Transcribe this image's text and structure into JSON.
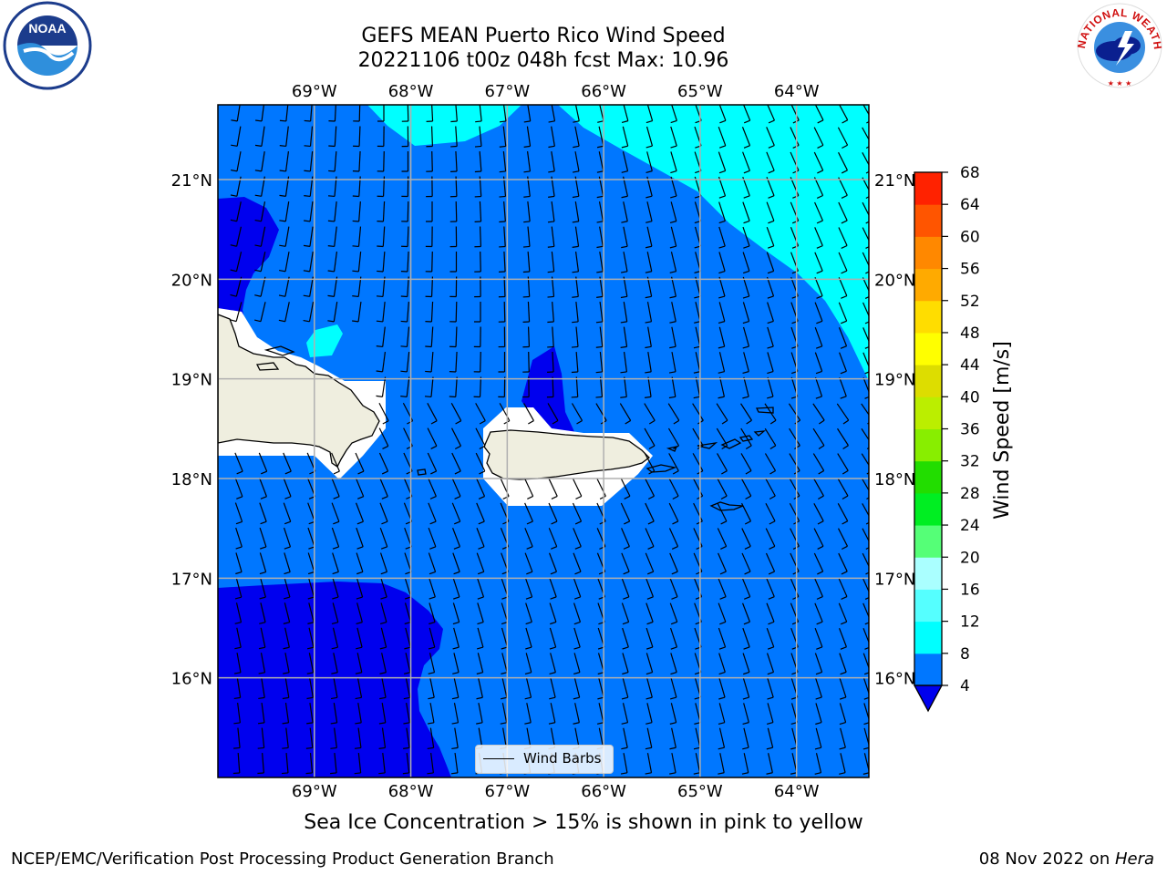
{
  "title": {
    "line1": "GEFS MEAN Puerto Rico Wind Speed",
    "line2": "20221106 t00z 048h fcst   Max: 10.96"
  },
  "map": {
    "lon_ticks": [
      "69°W",
      "68°W",
      "67°W",
      "66°W",
      "65°W",
      "64°W"
    ],
    "lat_ticks": [
      "21°N",
      "20°N",
      "19°N",
      "18°N",
      "17°N",
      "16°N"
    ],
    "lon_range": [
      -70.0,
      -63.25
    ],
    "lat_range": [
      15.0,
      21.75
    ],
    "gridlines": true,
    "legend": {
      "label": "Wind Barbs",
      "placement": "bottom-center"
    },
    "fill_colors": {
      "lt4": "#0000ee",
      "4to8": "#0077ff",
      "8to12": "#00ffff",
      "land": "#efeedf",
      "masked": "#ffffff"
    }
  },
  "colorbar": {
    "label": "Wind Speed [m/s]",
    "ticks": [
      "4",
      "8",
      "12",
      "16",
      "20",
      "24",
      "28",
      "32",
      "36",
      "40",
      "44",
      "48",
      "52",
      "56",
      "60",
      "64",
      "68"
    ],
    "colors": [
      "#0077ff",
      "#00ffff",
      "#55ffff",
      "#aaffff",
      "#55ff77",
      "#00ee22",
      "#22dd00",
      "#88ee00",
      "#bbee00",
      "#dddd00",
      "#ffff00",
      "#ffdd00",
      "#ffaa00",
      "#ff8800",
      "#ff5500",
      "#ff2200"
    ],
    "extend_color": "#0000ee"
  },
  "footer": {
    "note": "Sea Ice Concentration > 15% is shown in pink to yellow",
    "left": "NCEP/EMC/Verification Post Processing Product Generation Branch",
    "right_date": "08 Nov 2022 on ",
    "right_host": "Hera"
  },
  "logos": {
    "left": "NOAA",
    "right": "NATIONAL WEATHER SERVICE"
  }
}
